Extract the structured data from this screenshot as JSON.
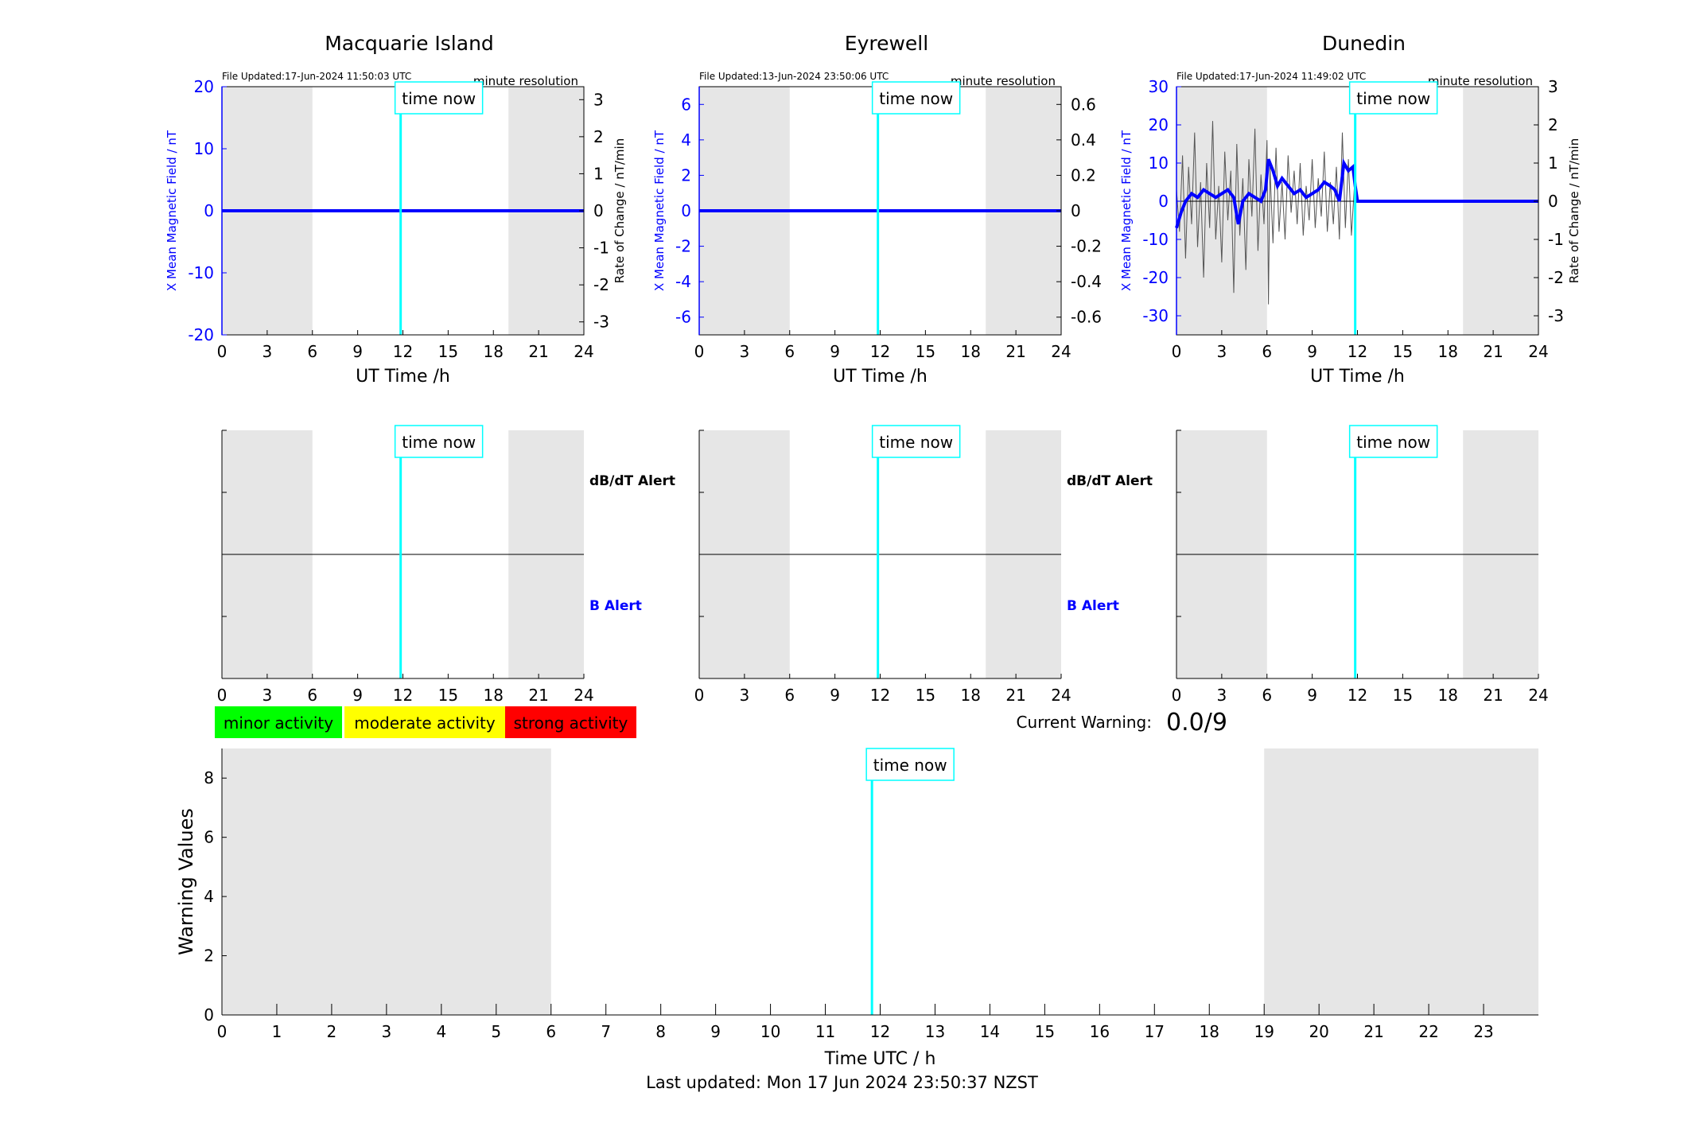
{
  "footer": {
    "last_updated": "Last updated: Mon 17 Jun 2024 23:50:37 NZST"
  },
  "labels": {
    "time_now": "time now",
    "minute_resolution": "minute resolution",
    "ut_time_label": "UT Time /h",
    "left_axis_label": "X Mean Magnetic Field / nT",
    "right_axis_label": "Rate of Change / nT/min",
    "dbdt_alert": "dB/dT Alert",
    "b_alert": "B Alert",
    "current_warning_label": "Current Warning:",
    "current_warning_value": "0.0/9"
  },
  "legend": [
    {
      "label": "minor activity",
      "color": "#00ff00"
    },
    {
      "label": "moderate activity",
      "color": "#ffff00"
    },
    {
      "label": "strong activity",
      "color": "#ff0000"
    }
  ],
  "colors": {
    "field": "#0000ff",
    "rate": "#555555",
    "time_now": "#00ffff",
    "night_shade": "#e6e6e6"
  },
  "chart_data": [
    {
      "type": "line",
      "title": "Macquarie Island",
      "file_updated": "File Updated:17-Jun-2024 11:50:03 UTC",
      "xlabel": "UT Time /h",
      "ylabel": "X Mean Magnetic Field / nT",
      "y2label": "Rate of Change / nT/min",
      "xlim": [
        0,
        24
      ],
      "xticks": [
        0,
        3,
        6,
        9,
        12,
        15,
        18,
        21,
        24
      ],
      "ylim": [
        -20,
        20
      ],
      "yticks": [
        -20,
        -10,
        0,
        10,
        20
      ],
      "y2lim": [
        -3.35,
        3.35
      ],
      "y2ticks": [
        -3,
        -2,
        -1,
        0,
        1,
        2,
        3
      ],
      "shaded": [
        [
          0,
          6
        ],
        [
          19,
          24
        ]
      ],
      "time_now": 11.85,
      "series": [
        {
          "x": [
            0,
            24
          ],
          "values": [
            0,
            0
          ]
        }
      ],
      "rate_series": []
    },
    {
      "type": "line",
      "title": "Eyrewell",
      "file_updated": "File Updated:13-Jun-2024 23:50:06 UTC",
      "xlabel": "UT Time /h",
      "ylabel": "X Mean Magnetic Field / nT",
      "y2label": "",
      "xlim": [
        0,
        24
      ],
      "xticks": [
        0,
        3,
        6,
        9,
        12,
        15,
        18,
        21,
        24
      ],
      "ylim": [
        -7,
        7
      ],
      "yticks": [
        -6,
        -4,
        -2,
        0,
        2,
        4,
        6
      ],
      "y2lim": [
        -0.7,
        0.7
      ],
      "y2ticks": [
        -0.6,
        -0.4,
        -0.2,
        0,
        0.2,
        0.4,
        0.6
      ],
      "shaded": [
        [
          0,
          6
        ],
        [
          19,
          24
        ]
      ],
      "time_now": 11.85,
      "series": [
        {
          "x": [
            0,
            24
          ],
          "values": [
            0,
            0
          ]
        }
      ],
      "rate_series": []
    },
    {
      "type": "line",
      "title": "Dunedin",
      "file_updated": "File Updated:17-Jun-2024 11:49:02 UTC",
      "xlabel": "UT Time /h",
      "ylabel": "X Mean Magnetic Field / nT",
      "y2label": "Rate of Change / nT/min",
      "xlim": [
        0,
        24
      ],
      "xticks": [
        0,
        3,
        6,
        9,
        12,
        15,
        18,
        21,
        24
      ],
      "ylim": [
        -35,
        30
      ],
      "yticks": [
        -30,
        -20,
        -10,
        0,
        10,
        20,
        30
      ],
      "y2lim": [
        -3.5,
        3.0
      ],
      "y2ticks": [
        -3,
        -2,
        -1,
        0,
        1,
        2,
        3
      ],
      "shaded": [
        [
          0,
          6
        ],
        [
          19,
          24
        ]
      ],
      "time_now": 11.85,
      "series": [
        {
          "x": [
            0,
            0.3,
            0.6,
            1.0,
            1.4,
            1.8,
            2.2,
            2.6,
            3.0,
            3.4,
            3.8,
            4.1,
            4.4,
            4.8,
            5.2,
            5.6,
            5.9,
            6.1,
            6.4,
            6.7,
            7.0,
            7.4,
            7.8,
            8.2,
            8.6,
            9.0,
            9.4,
            9.8,
            10.2,
            10.5,
            10.8,
            11.1,
            11.4,
            11.7,
            11.85,
            12.0,
            16.0,
            20.0,
            24.0
          ],
          "values": [
            -7,
            -3,
            0,
            2,
            1,
            3,
            2,
            1,
            2,
            3,
            1,
            -6,
            0,
            2,
            1,
            0,
            3,
            11,
            8,
            4,
            6,
            4,
            2,
            3,
            1,
            2,
            3,
            5,
            4,
            3,
            0,
            10,
            8,
            9,
            4,
            0,
            0,
            0,
            0
          ]
        }
      ],
      "rate_series": [
        {
          "x": [
            0,
            0.2,
            0.4,
            0.6,
            0.8,
            1.0,
            1.2,
            1.4,
            1.6,
            1.8,
            2.0,
            2.2,
            2.4,
            2.6,
            2.8,
            3.0,
            3.2,
            3.4,
            3.6,
            3.8,
            4.0,
            4.2,
            4.4,
            4.6,
            4.8,
            5.0,
            5.2,
            5.4,
            5.6,
            5.8,
            6.0,
            6.1,
            6.2,
            6.4,
            6.6,
            6.8,
            7.0,
            7.2,
            7.4,
            7.6,
            7.8,
            8.0,
            8.2,
            8.4,
            8.6,
            8.8,
            9.0,
            9.2,
            9.4,
            9.6,
            9.8,
            10.0,
            10.2,
            10.4,
            10.6,
            10.8,
            11.0,
            11.2,
            11.4,
            11.6,
            11.8
          ],
          "values": [
            0.3,
            -0.8,
            1.2,
            -1.5,
            0.9,
            -0.6,
            1.8,
            -1.2,
            0.5,
            -2.0,
            1.0,
            -0.7,
            2.1,
            -1.0,
            0.4,
            -1.6,
            1.3,
            -0.5,
            0.8,
            -2.4,
            1.5,
            -0.9,
            0.6,
            -1.8,
            1.1,
            -0.4,
            1.9,
            -1.3,
            0.7,
            -0.6,
            1.6,
            -2.7,
            0.9,
            -1.1,
            1.4,
            -0.8,
            0.5,
            -1.0,
            1.2,
            -0.3,
            0.8,
            -0.6,
            1.0,
            -0.9,
            0.4,
            -0.5,
            1.1,
            -0.7,
            0.6,
            -0.4,
            1.3,
            -0.8,
            0.5,
            -0.6,
            0.9,
            -1.0,
            1.8,
            -0.7,
            1.1,
            -0.9,
            0.4
          ]
        }
      ]
    },
    {
      "type": "line",
      "title": "",
      "xlim": [
        0,
        24
      ],
      "xticks": [
        0,
        3,
        6,
        9,
        12,
        15,
        18,
        21,
        24
      ],
      "shaded": [
        [
          0,
          6
        ],
        [
          19,
          24
        ]
      ],
      "time_now": 11.85,
      "dbdt_alert": "dB/dT Alert",
      "b_alert": "B Alert",
      "show_alert_labels": true
    },
    {
      "type": "line",
      "title": "",
      "xlim": [
        0,
        24
      ],
      "xticks": [
        0,
        3,
        6,
        9,
        12,
        15,
        18,
        21,
        24
      ],
      "shaded": [
        [
          0,
          6
        ],
        [
          19,
          24
        ]
      ],
      "time_now": 11.85,
      "dbdt_alert": "dB/dT Alert",
      "b_alert": "B Alert",
      "show_alert_labels": true
    },
    {
      "type": "line",
      "title": "",
      "xlim": [
        0,
        24
      ],
      "xticks": [
        0,
        3,
        6,
        9,
        12,
        15,
        18,
        21,
        24
      ],
      "shaded": [
        [
          0,
          6
        ],
        [
          19,
          24
        ]
      ],
      "time_now": 11.85,
      "show_alert_labels": false
    },
    {
      "type": "bar",
      "title": "",
      "xlabel": "Time UTC / h",
      "ylabel": "Warning Values",
      "xlim": [
        0,
        24
      ],
      "xticks": [
        0,
        1,
        2,
        3,
        4,
        5,
        6,
        7,
        8,
        9,
        10,
        11,
        12,
        13,
        14,
        15,
        16,
        17,
        18,
        19,
        20,
        21,
        22,
        23
      ],
      "ylim": [
        0,
        9
      ],
      "yticks": [
        0,
        2,
        4,
        6,
        8
      ],
      "shaded": [
        [
          0,
          6
        ],
        [
          19,
          24
        ]
      ],
      "time_now": 11.85,
      "values": []
    }
  ]
}
